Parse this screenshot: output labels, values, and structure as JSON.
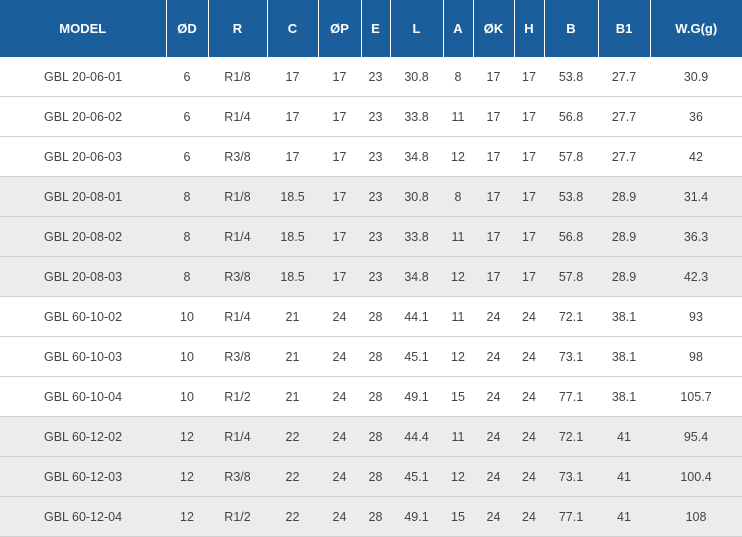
{
  "table": {
    "headers": [
      "MODEL",
      "ØD",
      "R",
      "C",
      "ØP",
      "E",
      "L",
      "A",
      "ØK",
      "H",
      "B",
      "B1",
      "W.G(g)"
    ],
    "rows": [
      [
        "GBL 20-06-01",
        "6",
        "R1/8",
        "17",
        "17",
        "23",
        "30.8",
        "8",
        "17",
        "17",
        "53.8",
        "27.7",
        "30.9"
      ],
      [
        "GBL 20-06-02",
        "6",
        "R1/4",
        "17",
        "17",
        "23",
        "33.8",
        "11",
        "17",
        "17",
        "56.8",
        "27.7",
        "36"
      ],
      [
        "GBL 20-06-03",
        "6",
        "R3/8",
        "17",
        "17",
        "23",
        "34.8",
        "12",
        "17",
        "17",
        "57.8",
        "27.7",
        "42"
      ],
      [
        "GBL 20-08-01",
        "8",
        "R1/8",
        "18.5",
        "17",
        "23",
        "30.8",
        "8",
        "17",
        "17",
        "53.8",
        "28.9",
        "31.4"
      ],
      [
        "GBL 20-08-02",
        "8",
        "R1/4",
        "18.5",
        "17",
        "23",
        "33.8",
        "11",
        "17",
        "17",
        "56.8",
        "28.9",
        "36.3"
      ],
      [
        "GBL 20-08-03",
        "8",
        "R3/8",
        "18.5",
        "17",
        "23",
        "34.8",
        "12",
        "17",
        "17",
        "57.8",
        "28.9",
        "42.3"
      ],
      [
        "GBL 60-10-02",
        "10",
        "R1/4",
        "21",
        "24",
        "28",
        "44.1",
        "11",
        "24",
        "24",
        "72.1",
        "38.1",
        "93"
      ],
      [
        "GBL 60-10-03",
        "10",
        "R3/8",
        "21",
        "24",
        "28",
        "45.1",
        "12",
        "24",
        "24",
        "73.1",
        "38.1",
        "98"
      ],
      [
        "GBL 60-10-04",
        "10",
        "R1/2",
        "21",
        "24",
        "28",
        "49.1",
        "15",
        "24",
        "24",
        "77.1",
        "38.1",
        "105.7"
      ],
      [
        "GBL 60-12-02",
        "12",
        "R1/4",
        "22",
        "24",
        "28",
        "44.4",
        "11",
        "24",
        "24",
        "72.1",
        "41",
        "95.4"
      ],
      [
        "GBL 60-12-03",
        "12",
        "R3/8",
        "22",
        "24",
        "28",
        "45.1",
        "12",
        "24",
        "24",
        "73.1",
        "41",
        "100.4"
      ],
      [
        "GBL 60-12-04",
        "12",
        "R1/2",
        "22",
        "24",
        "28",
        "49.1",
        "15",
        "24",
        "24",
        "77.1",
        "41",
        "108"
      ]
    ]
  },
  "colors": {
    "header_bg": "#1b5e9c",
    "header_text": "#ffffff",
    "row_white": "#ffffff",
    "row_gray": "#ececec",
    "cell_text": "#444444"
  }
}
